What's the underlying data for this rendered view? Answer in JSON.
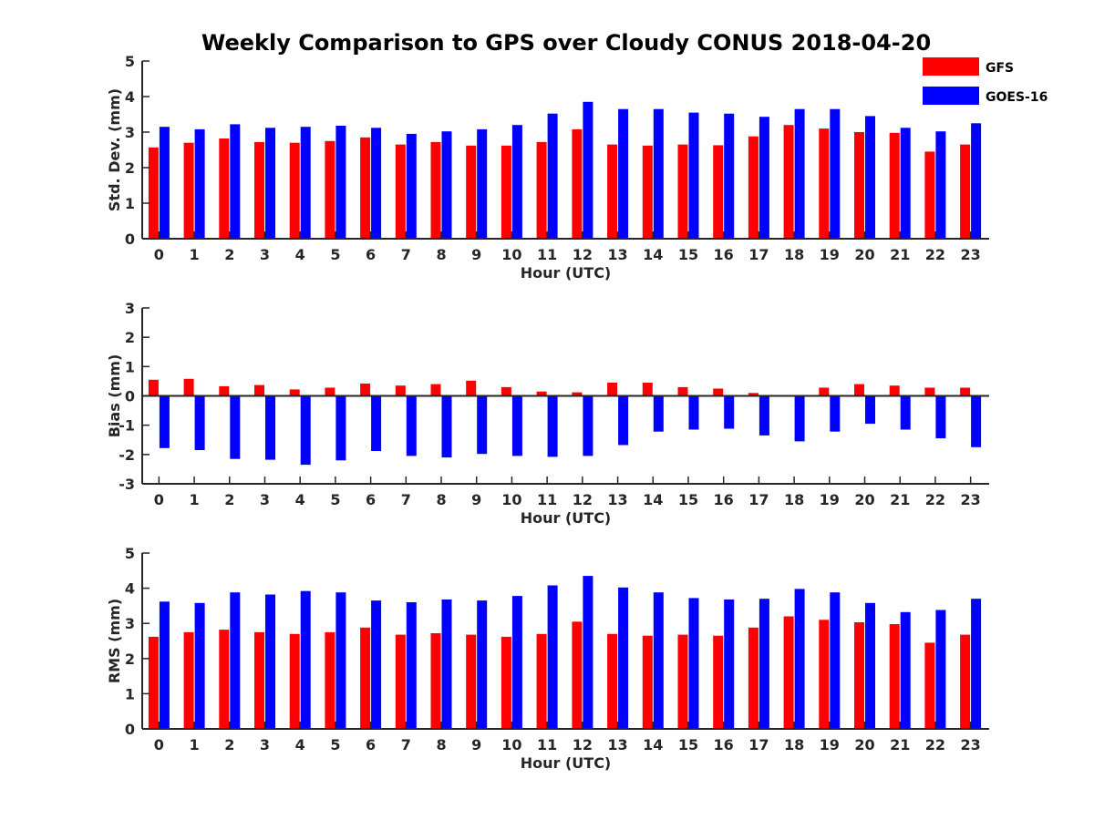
{
  "title": "Weekly Comparison to GPS over Cloudy CONUS 2018-04-20",
  "legend": [
    {
      "name": "GFS",
      "color": "#ff0000"
    },
    {
      "name": "GOES-16",
      "color": "#0000ff"
    }
  ],
  "chart_data": [
    {
      "type": "bar",
      "xlabel": "Hour (UTC)",
      "ylabel": "Std. Dev. (mm)",
      "ylim": [
        0,
        5
      ],
      "yticks": [
        0,
        1,
        2,
        3,
        4,
        5
      ],
      "categories": [
        "0",
        "1",
        "2",
        "3",
        "4",
        "5",
        "6",
        "7",
        "8",
        "9",
        "10",
        "11",
        "12",
        "13",
        "14",
        "15",
        "16",
        "17",
        "18",
        "19",
        "20",
        "21",
        "22",
        "23"
      ],
      "series": [
        {
          "name": "GFS",
          "color": "#ff0000",
          "values": [
            2.57,
            2.7,
            2.82,
            2.72,
            2.7,
            2.75,
            2.85,
            2.65,
            2.72,
            2.62,
            2.62,
            2.72,
            3.08,
            2.65,
            2.62,
            2.65,
            2.63,
            2.88,
            3.2,
            3.1,
            3.0,
            2.98,
            2.45,
            2.65
          ]
        },
        {
          "name": "GOES-16",
          "color": "#0000ff",
          "values": [
            3.15,
            3.08,
            3.22,
            3.12,
            3.15,
            3.18,
            3.12,
            2.95,
            3.02,
            3.08,
            3.2,
            3.52,
            3.85,
            3.65,
            3.65,
            3.55,
            3.52,
            3.43,
            3.65,
            3.65,
            3.45,
            3.12,
            3.02,
            3.25
          ]
        }
      ],
      "legend_position": "top-right",
      "grid": false
    },
    {
      "type": "bar",
      "xlabel": "Hour (UTC)",
      "ylabel": "Bias (mm)",
      "ylim": [
        -3,
        3
      ],
      "yticks": [
        -3,
        -2,
        -1,
        0,
        1,
        2,
        3
      ],
      "categories": [
        "0",
        "1",
        "2",
        "3",
        "4",
        "5",
        "6",
        "7",
        "8",
        "9",
        "10",
        "11",
        "12",
        "13",
        "14",
        "15",
        "16",
        "17",
        "18",
        "19",
        "20",
        "21",
        "22",
        "23"
      ],
      "series": [
        {
          "name": "GFS",
          "color": "#ff0000",
          "values": [
            0.55,
            0.58,
            0.33,
            0.37,
            0.22,
            0.28,
            0.42,
            0.35,
            0.4,
            0.52,
            0.3,
            0.15,
            0.12,
            0.45,
            0.45,
            0.3,
            0.25,
            0.1,
            0.03,
            0.28,
            0.4,
            0.35,
            0.28,
            0.28
          ]
        },
        {
          "name": "GOES-16",
          "color": "#0000ff",
          "values": [
            -1.78,
            -1.85,
            -2.15,
            -2.18,
            -2.35,
            -2.2,
            -1.88,
            -2.05,
            -2.1,
            -1.98,
            -2.05,
            -2.08,
            -2.05,
            -1.68,
            -1.22,
            -1.15,
            -1.12,
            -1.35,
            -1.55,
            -1.22,
            -0.95,
            -1.15,
            -1.45,
            -1.75
          ]
        }
      ],
      "grid": false
    },
    {
      "type": "bar",
      "xlabel": "Hour (UTC)",
      "ylabel": "RMS (mm)",
      "ylim": [
        0,
        5
      ],
      "yticks": [
        0,
        1,
        2,
        3,
        4,
        5
      ],
      "categories": [
        "0",
        "1",
        "2",
        "3",
        "4",
        "5",
        "6",
        "7",
        "8",
        "9",
        "10",
        "11",
        "12",
        "13",
        "14",
        "15",
        "16",
        "17",
        "18",
        "19",
        "20",
        "21",
        "22",
        "23"
      ],
      "series": [
        {
          "name": "GFS",
          "color": "#ff0000",
          "values": [
            2.62,
            2.75,
            2.82,
            2.75,
            2.7,
            2.75,
            2.88,
            2.68,
            2.72,
            2.68,
            2.62,
            2.7,
            3.05,
            2.7,
            2.65,
            2.68,
            2.65,
            2.88,
            3.2,
            3.1,
            3.03,
            2.98,
            2.45,
            2.68
          ]
        },
        {
          "name": "GOES-16",
          "color": "#0000ff",
          "values": [
            3.62,
            3.58,
            3.88,
            3.82,
            3.92,
            3.88,
            3.65,
            3.6,
            3.68,
            3.65,
            3.78,
            4.08,
            4.35,
            4.02,
            3.88,
            3.72,
            3.68,
            3.7,
            3.98,
            3.88,
            3.58,
            3.32,
            3.38,
            3.7
          ]
        }
      ],
      "grid": false
    }
  ]
}
